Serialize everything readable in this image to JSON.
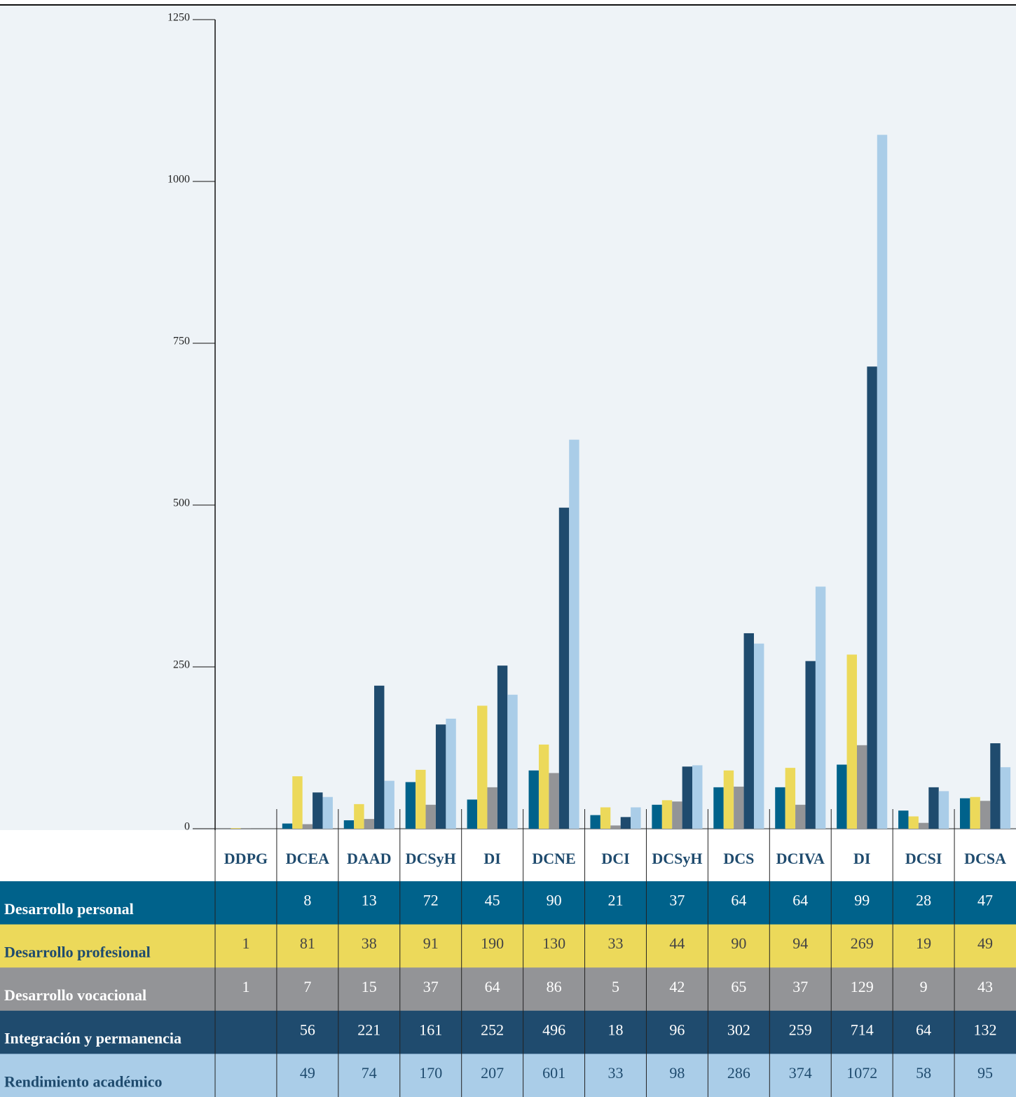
{
  "chart_data": {
    "type": "bar",
    "categories": [
      "DDPG",
      "DCEA",
      "DAAD",
      "DCSyH",
      "DI",
      "DCNE",
      "DCI",
      "DCSyH",
      "DCS",
      "DCIVA",
      "DI",
      "DCSI",
      "DCSA"
    ],
    "series": [
      {
        "name": "Desarrollo personal",
        "color": "#00628b",
        "values": [
          null,
          8,
          13,
          72,
          45,
          90,
          21,
          37,
          64,
          64,
          99,
          28,
          47
        ]
      },
      {
        "name": "Desarrollo profesional",
        "color": "#ecd95a",
        "values": [
          1,
          81,
          38,
          91,
          190,
          130,
          33,
          44,
          90,
          94,
          269,
          19,
          49
        ]
      },
      {
        "name": "Desarrollo vocacional",
        "color": "#939497",
        "values": [
          1,
          7,
          15,
          37,
          64,
          86,
          5,
          42,
          65,
          37,
          129,
          9,
          43
        ]
      },
      {
        "name": "Integración y permanencia",
        "color": "#1f4b6e",
        "values": [
          null,
          56,
          221,
          161,
          252,
          496,
          18,
          96,
          302,
          259,
          714,
          64,
          132
        ]
      },
      {
        "name": "Rendimiento académico",
        "color": "#aacde8",
        "values": [
          null,
          49,
          74,
          170,
          207,
          601,
          33,
          98,
          286,
          374,
          1072,
          58,
          95
        ]
      }
    ],
    "ylim": [
      0,
      1250
    ],
    "yticks": [
      0,
      250,
      500,
      750,
      1000,
      1250
    ]
  }
}
